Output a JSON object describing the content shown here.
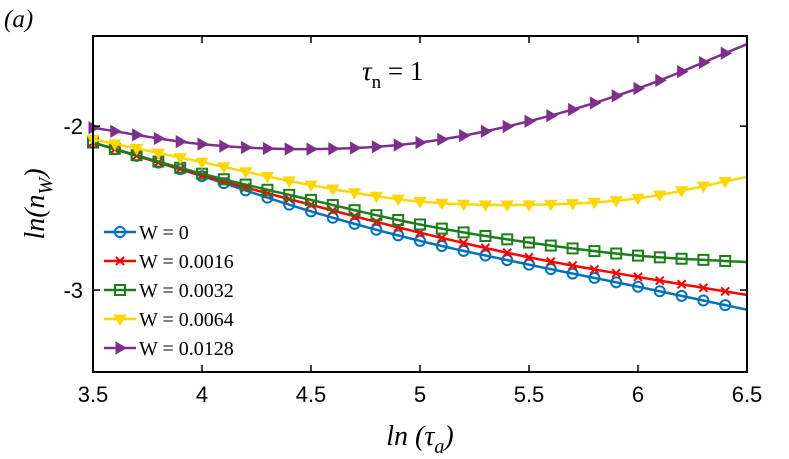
{
  "panel_label": "(a)",
  "chart_data": {
    "type": "line",
    "title": "",
    "annotation": {
      "symbol": "τ",
      "subscript": "n",
      "value": " = 1"
    },
    "xlabel": {
      "prefix": "ln (",
      "symbol": "τ",
      "subscript": "a",
      "suffix": ")"
    },
    "ylabel": {
      "prefix": "ln(n",
      "subscript": "W",
      "suffix": ")"
    },
    "xlim": [
      3.5,
      6.5
    ],
    "ylim": [
      -3.5,
      -1.45
    ],
    "xticks": [
      3.5,
      4,
      4.5,
      5,
      5.5,
      6,
      6.5
    ],
    "xtick_labels": [
      "3.5",
      "4",
      "4.5",
      "5",
      "5.5",
      "6",
      "6.5"
    ],
    "yticks": [
      -3,
      -2
    ],
    "ytick_labels": [
      "-3",
      "-2"
    ],
    "grid": false,
    "legend_position": "lower-left",
    "marker_x_start": 3.5,
    "marker_x_step": 0.1,
    "series": [
      {
        "name": "W = 0",
        "color": "#0072BD",
        "marker": "circle",
        "x": [
          3.5,
          4.0,
          4.5,
          5.0,
          5.5,
          6.0,
          6.5
        ],
        "y": [
          -2.1,
          -2.305,
          -2.52,
          -2.7,
          -2.845,
          -2.98,
          -3.12
        ]
      },
      {
        "name": "W = 0.0016",
        "color": "#FF0000",
        "marker": "x",
        "x": [
          3.5,
          4.0,
          4.5,
          5.0,
          5.5,
          6.0,
          6.5
        ],
        "y": [
          -2.1,
          -2.3,
          -2.48,
          -2.65,
          -2.8,
          -2.92,
          -3.03
        ]
      },
      {
        "name": "W = 0.0032",
        "color": "#1A7F1A",
        "marker": "square",
        "x": [
          3.5,
          4.0,
          4.5,
          5.0,
          5.5,
          6.0,
          6.5
        ],
        "y": [
          -2.1,
          -2.29,
          -2.45,
          -2.6,
          -2.71,
          -2.79,
          -2.83
        ]
      },
      {
        "name": "W = 0.0064",
        "color": "#FFD700",
        "marker": "triangle-down",
        "x": [
          3.5,
          4.0,
          4.5,
          5.0,
          5.5,
          6.0,
          6.5
        ],
        "y": [
          -2.08,
          -2.22,
          -2.36,
          -2.46,
          -2.48,
          -2.44,
          -2.31
        ]
      },
      {
        "name": "W = 0.0128",
        "color": "#7E2F8E",
        "marker": "triangle-right",
        "x": [
          3.5,
          4.0,
          4.5,
          5.0,
          5.5,
          6.0,
          6.5
        ],
        "y": [
          -2.01,
          -2.11,
          -2.14,
          -2.1,
          -1.97,
          -1.77,
          -1.5
        ]
      }
    ]
  }
}
